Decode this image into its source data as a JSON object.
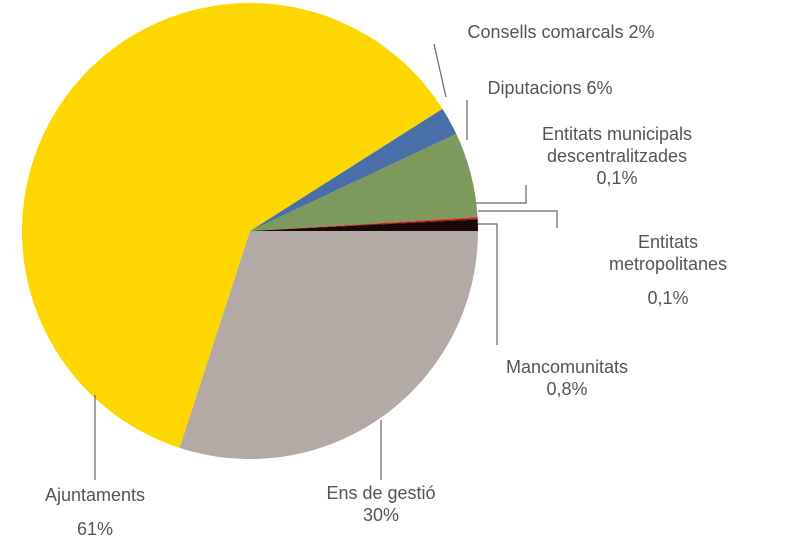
{
  "chart_data": {
    "type": "pie",
    "categories": [
      "Ens de gestió",
      "Ajuntaments",
      "Consells comarcals",
      "Diputacions",
      "Entitats municipals descentralitzades",
      "Entitats metropolitanes",
      "Mancomunitats"
    ],
    "values": [
      30,
      61,
      2,
      6,
      0.1,
      0.1,
      0.8
    ],
    "value_labels": [
      "30%",
      "61%",
      "2%",
      "6%",
      "0,1%",
      "0,1%",
      "0,8%"
    ],
    "colors": [
      "#b4aaa5",
      "#ffd700",
      "#4a6ea8",
      "#7b9a5c",
      "#e8402a",
      "#7a1a10",
      "#1a0808"
    ]
  }
}
